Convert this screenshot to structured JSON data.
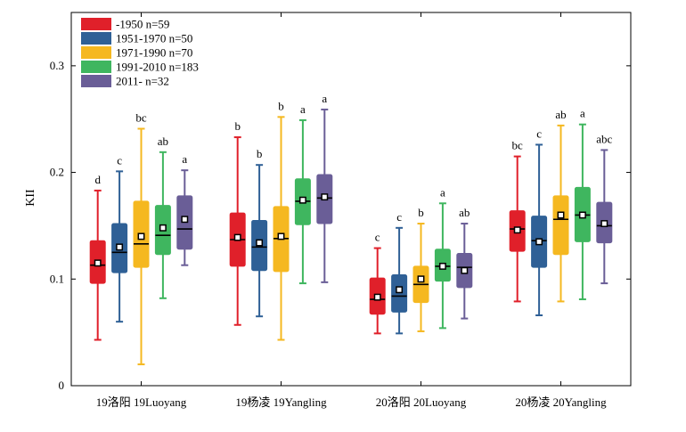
{
  "chart_data": {
    "type": "box",
    "ylabel": "KII",
    "xlabel": "",
    "ylim": [
      0,
      0.35
    ],
    "y_ticks": [
      "0",
      "0.1",
      "0.2",
      "0.3"
    ],
    "y_tick_values": [
      0,
      0.1,
      0.2,
      0.3
    ],
    "legend_position": "top-left",
    "grid": false,
    "categories": [
      "19洛阳 19Luoyang",
      "19杨凌 19Yangling",
      "20洛阳 20Luoyang",
      "20杨凌 20Yangling"
    ],
    "series": [
      {
        "name": "-1950 n=59",
        "color": "#e0202a",
        "boxes": [
          {
            "min": 0.043,
            "q1": 0.096,
            "median": 0.113,
            "q3": 0.136,
            "max": 0.183,
            "mean": 0.115,
            "sig": "d"
          },
          {
            "min": 0.057,
            "q1": 0.112,
            "median": 0.137,
            "q3": 0.162,
            "max": 0.233,
            "mean": 0.139,
            "sig": "b"
          },
          {
            "min": 0.049,
            "q1": 0.067,
            "median": 0.081,
            "q3": 0.101,
            "max": 0.129,
            "mean": 0.083,
            "sig": "c"
          },
          {
            "min": 0.079,
            "q1": 0.126,
            "median": 0.147,
            "q3": 0.164,
            "max": 0.215,
            "mean": 0.146,
            "sig": "bc"
          }
        ]
      },
      {
        "name": "1951-1970 n=50",
        "color": "#2f6096",
        "boxes": [
          {
            "min": 0.06,
            "q1": 0.106,
            "median": 0.125,
            "q3": 0.152,
            "max": 0.201,
            "mean": 0.13,
            "sig": "c"
          },
          {
            "min": 0.065,
            "q1": 0.108,
            "median": 0.13,
            "q3": 0.155,
            "max": 0.207,
            "mean": 0.134,
            "sig": "b"
          },
          {
            "min": 0.049,
            "q1": 0.069,
            "median": 0.084,
            "q3": 0.104,
            "max": 0.148,
            "mean": 0.09,
            "sig": "c"
          },
          {
            "min": 0.066,
            "q1": 0.111,
            "median": 0.136,
            "q3": 0.159,
            "max": 0.226,
            "mean": 0.135,
            "sig": "c"
          }
        ]
      },
      {
        "name": "1971-1990 n=70",
        "color": "#f5b820",
        "boxes": [
          {
            "min": 0.02,
            "q1": 0.111,
            "median": 0.133,
            "q3": 0.173,
            "max": 0.241,
            "mean": 0.14,
            "sig": "bc"
          },
          {
            "min": 0.043,
            "q1": 0.107,
            "median": 0.138,
            "q3": 0.168,
            "max": 0.252,
            "mean": 0.14,
            "sig": "b"
          },
          {
            "min": 0.051,
            "q1": 0.078,
            "median": 0.095,
            "q3": 0.112,
            "max": 0.152,
            "mean": 0.1,
            "sig": "b"
          },
          {
            "min": 0.079,
            "q1": 0.123,
            "median": 0.156,
            "q3": 0.178,
            "max": 0.244,
            "mean": 0.16,
            "sig": "ab"
          }
        ]
      },
      {
        "name": "1991-2010 n=183",
        "color": "#3fb65f",
        "boxes": [
          {
            "min": 0.082,
            "q1": 0.123,
            "median": 0.141,
            "q3": 0.169,
            "max": 0.219,
            "mean": 0.148,
            "sig": "ab"
          },
          {
            "min": 0.096,
            "q1": 0.151,
            "median": 0.173,
            "q3": 0.194,
            "max": 0.249,
            "mean": 0.174,
            "sig": "a"
          },
          {
            "min": 0.054,
            "q1": 0.098,
            "median": 0.112,
            "q3": 0.128,
            "max": 0.171,
            "mean": 0.112,
            "sig": "a"
          },
          {
            "min": 0.081,
            "q1": 0.135,
            "median": 0.16,
            "q3": 0.186,
            "max": 0.245,
            "mean": 0.16,
            "sig": "a"
          }
        ]
      },
      {
        "name": "2011- n=32",
        "color": "#6a5e97",
        "boxes": [
          {
            "min": 0.113,
            "q1": 0.128,
            "median": 0.147,
            "q3": 0.178,
            "max": 0.202,
            "mean": 0.156,
            "sig": "a"
          },
          {
            "min": 0.097,
            "q1": 0.152,
            "median": 0.176,
            "q3": 0.198,
            "max": 0.259,
            "mean": 0.177,
            "sig": "a"
          },
          {
            "min": 0.063,
            "q1": 0.092,
            "median": 0.111,
            "q3": 0.124,
            "max": 0.152,
            "mean": 0.108,
            "sig": "ab"
          },
          {
            "min": 0.096,
            "q1": 0.134,
            "median": 0.15,
            "q3": 0.172,
            "max": 0.221,
            "mean": 0.152,
            "sig": "abc"
          }
        ]
      }
    ]
  }
}
